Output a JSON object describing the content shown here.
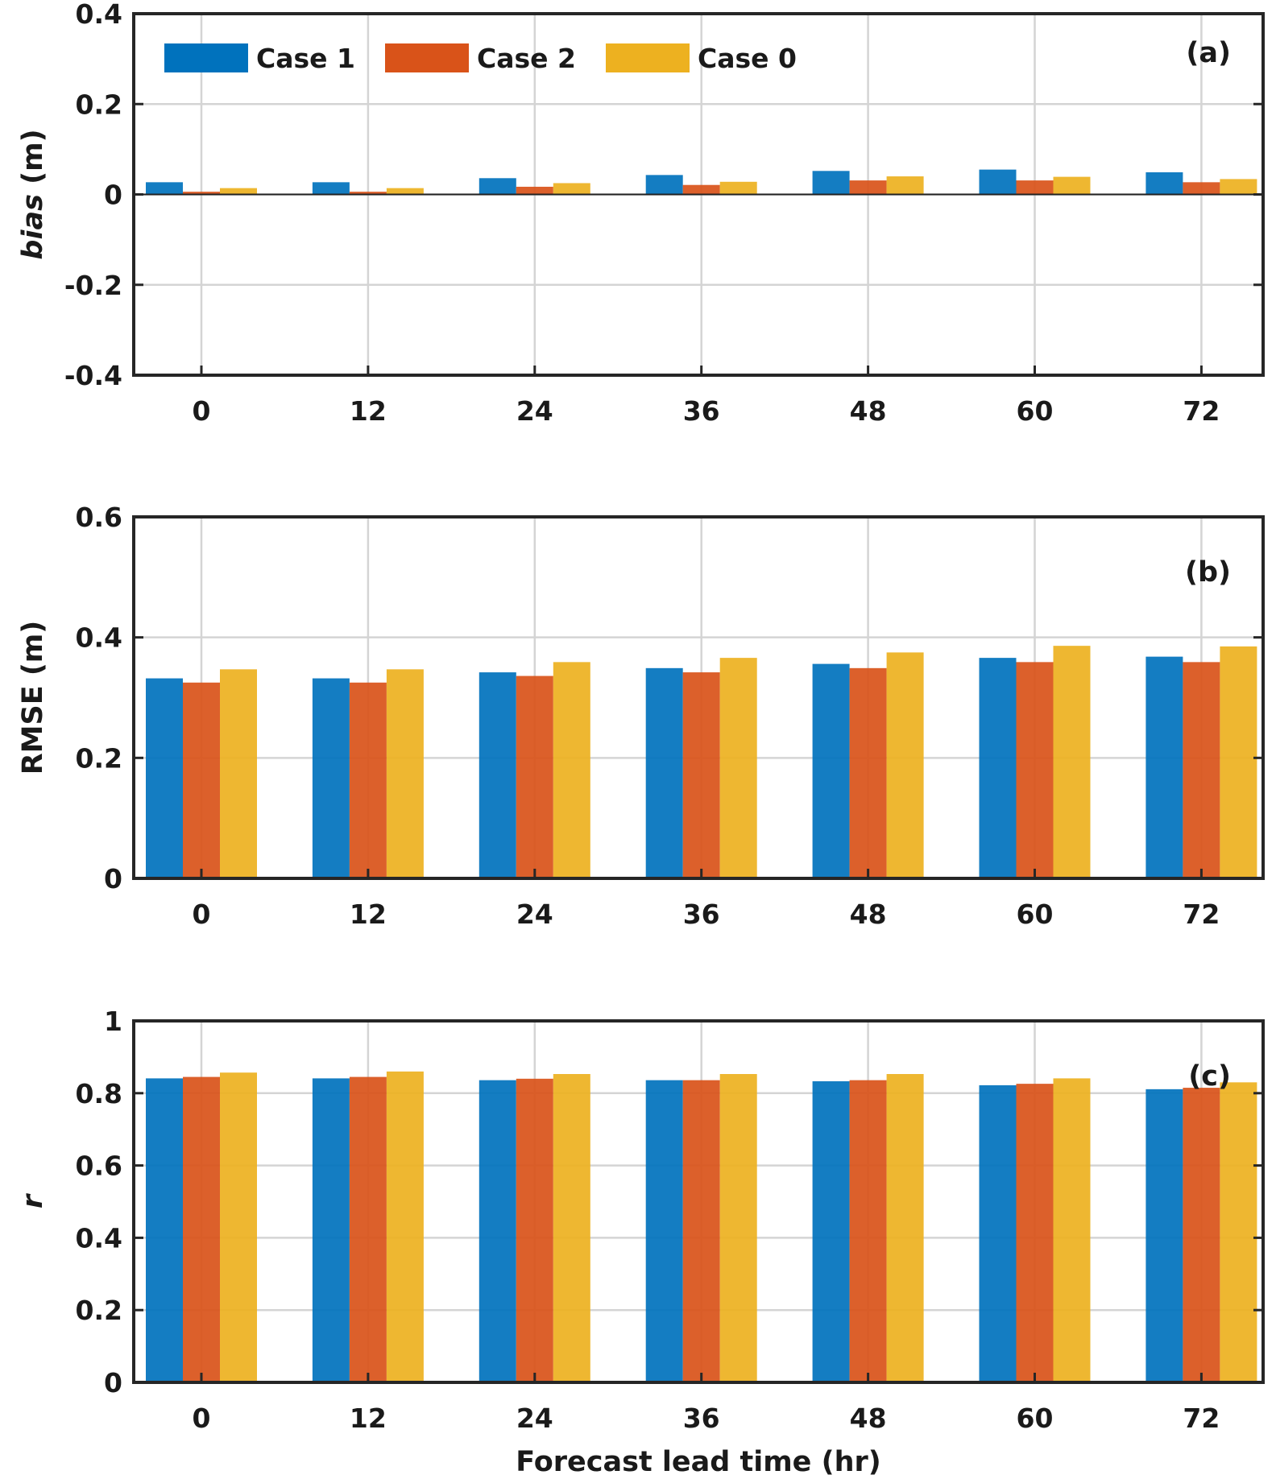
{
  "chart_data": [
    {
      "type": "bar",
      "panel_label": "(a)",
      "categories": [
        "0",
        "12",
        "24",
        "36",
        "48",
        "60",
        "72"
      ],
      "ylabel_italic": "bias",
      "ylabel_rest": " (m)",
      "ylim": [
        -0.4,
        0.4
      ],
      "yticks": [
        "-0.4",
        "-0.2",
        "0",
        "0.2",
        "0.4"
      ],
      "ytick_values": [
        -0.4,
        -0.2,
        0,
        0.2,
        0.4
      ],
      "grid": true,
      "legend_position": "top-left",
      "series": [
        {
          "name": "Case 1",
          "color": "#0072BD",
          "values": [
            0.027,
            0.027,
            0.036,
            0.043,
            0.052,
            0.055,
            0.049
          ]
        },
        {
          "name": "Case 2",
          "color": "#D95319",
          "values": [
            0.006,
            0.006,
            0.017,
            0.021,
            0.031,
            0.031,
            0.027
          ]
        },
        {
          "name": "Case 0",
          "color": "#EDB120",
          "values": [
            0.014,
            0.014,
            0.025,
            0.028,
            0.04,
            0.039,
            0.034
          ]
        }
      ]
    },
    {
      "type": "bar",
      "panel_label": "(b)",
      "categories": [
        "0",
        "12",
        "24",
        "36",
        "48",
        "60",
        "72"
      ],
      "ylabel": "RMSE (m)",
      "ylim": [
        0,
        0.6
      ],
      "yticks": [
        "0",
        "0.2",
        "0.4",
        "0.6"
      ],
      "ytick_values": [
        0,
        0.2,
        0.4,
        0.6
      ],
      "grid": true,
      "series": [
        {
          "name": "Case 1",
          "color": "#0072BD",
          "values": [
            0.332,
            0.332,
            0.342,
            0.349,
            0.356,
            0.366,
            0.368
          ]
        },
        {
          "name": "Case 2",
          "color": "#D95319",
          "values": [
            0.325,
            0.325,
            0.336,
            0.342,
            0.349,
            0.359,
            0.359
          ]
        },
        {
          "name": "Case 0",
          "color": "#EDB120",
          "values": [
            0.347,
            0.347,
            0.359,
            0.366,
            0.375,
            0.386,
            0.385
          ]
        }
      ]
    },
    {
      "type": "bar",
      "panel_label": "(c)",
      "categories": [
        "0",
        "12",
        "24",
        "36",
        "48",
        "60",
        "72"
      ],
      "ylabel_italic": "r",
      "ylabel_rest": "",
      "xlabel": "Forecast lead time (hr)",
      "ylim": [
        0,
        1
      ],
      "yticks": [
        "0",
        "0.2",
        "0.4",
        "0.6",
        "0.8",
        "1"
      ],
      "ytick_values": [
        0,
        0.2,
        0.4,
        0.6,
        0.8,
        1
      ],
      "grid": true,
      "series": [
        {
          "name": "Case 1",
          "color": "#0072BD",
          "values": [
            0.841,
            0.841,
            0.836,
            0.836,
            0.833,
            0.822,
            0.811
          ]
        },
        {
          "name": "Case 2",
          "color": "#D95319",
          "values": [
            0.845,
            0.845,
            0.84,
            0.836,
            0.836,
            0.826,
            0.815
          ]
        },
        {
          "name": "Case 0",
          "color": "#EDB120",
          "values": [
            0.857,
            0.86,
            0.853,
            0.853,
            0.853,
            0.841,
            0.83
          ]
        }
      ]
    }
  ]
}
